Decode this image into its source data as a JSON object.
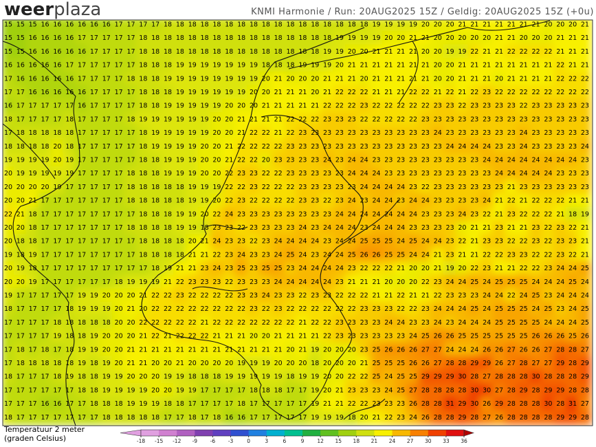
{
  "logo": {
    "bold": "weer",
    "light": "plaza"
  },
  "header": "KNMI Harmonie / Run: 20AUG2025 15Z / Geldig: 20AUG2025 15Z (+0u)",
  "legend": {
    "line1": "Temperatuur 2 meter",
    "line2": "(graden Celsius)",
    "ticks": [
      -18,
      -15,
      -12,
      -9,
      -6,
      -3,
      0,
      3,
      6,
      9,
      12,
      15,
      18,
      21,
      24,
      27,
      30,
      33,
      36
    ],
    "colors": [
      "#e0a0e0",
      "#d080d0",
      "#b060c0",
      "#8040b0",
      "#6040c0",
      "#3050d0",
      "#2080e0",
      "#00b0d0",
      "#00c090",
      "#20b040",
      "#60c020",
      "#a0d010",
      "#d0e010",
      "#f8f000",
      "#f8b800",
      "#f88000",
      "#f04000",
      "#e01010",
      "#b00000"
    ]
  },
  "grid": [
    [
      15,
      15,
      15,
      16,
      16,
      16,
      16,
      16,
      16,
      17,
      17,
      17,
      17,
      18,
      18,
      18,
      18,
      18,
      18,
      18,
      18,
      18,
      18,
      18,
      18,
      18,
      18,
      18,
      18,
      18,
      19,
      19,
      19,
      19,
      20,
      20,
      20,
      21,
      21,
      21,
      21,
      21,
      21,
      21,
      20,
      20,
      20,
      21
    ],
    [
      15,
      15,
      16,
      16,
      16,
      16,
      17,
      17,
      17,
      17,
      17,
      18,
      18,
      18,
      18,
      18,
      18,
      18,
      18,
      18,
      18,
      18,
      18,
      18,
      18,
      18,
      18,
      19,
      19,
      19,
      19,
      20,
      20,
      21,
      21,
      20,
      20,
      20,
      20,
      20,
      21,
      21,
      20,
      20,
      20,
      21,
      21,
      21
    ],
    [
      15,
      15,
      16,
      16,
      16,
      16,
      16,
      17,
      17,
      17,
      17,
      18,
      18,
      18,
      18,
      18,
      18,
      18,
      18,
      18,
      18,
      18,
      18,
      18,
      18,
      18,
      19,
      19,
      20,
      20,
      21,
      21,
      21,
      21,
      20,
      20,
      19,
      19,
      22,
      21,
      21,
      22,
      22,
      22,
      22,
      21,
      21,
      21
    ],
    [
      16,
      16,
      16,
      16,
      16,
      17,
      17,
      17,
      17,
      17,
      17,
      18,
      18,
      18,
      19,
      19,
      19,
      19,
      19,
      19,
      19,
      18,
      18,
      18,
      19,
      19,
      19,
      20,
      21,
      21,
      21,
      21,
      21,
      21,
      21,
      20,
      20,
      21,
      21,
      21,
      21,
      21,
      21,
      21,
      21,
      22,
      21,
      21
    ],
    [
      17,
      16,
      16,
      16,
      16,
      16,
      17,
      17,
      17,
      17,
      18,
      18,
      18,
      19,
      19,
      19,
      19,
      19,
      19,
      19,
      19,
      20,
      21,
      20,
      20,
      20,
      21,
      21,
      21,
      20,
      21,
      21,
      21,
      21,
      21,
      20,
      20,
      21,
      21,
      21,
      20,
      21,
      21,
      21,
      21,
      22,
      22,
      22
    ],
    [
      17,
      17,
      16,
      16,
      16,
      16,
      16,
      17,
      17,
      17,
      17,
      18,
      18,
      18,
      19,
      19,
      19,
      19,
      19,
      19,
      20,
      20,
      21,
      21,
      21,
      20,
      21,
      22,
      22,
      22,
      21,
      21,
      21,
      22,
      22,
      21,
      22,
      21,
      22,
      23,
      22,
      22,
      22,
      22,
      22,
      22,
      22,
      22
    ],
    [
      16,
      17,
      17,
      17,
      17,
      17,
      16,
      17,
      17,
      17,
      17,
      18,
      18,
      19,
      19,
      19,
      19,
      19,
      20,
      20,
      20,
      21,
      21,
      21,
      21,
      21,
      22,
      22,
      22,
      23,
      22,
      22,
      22,
      22,
      22,
      23,
      23,
      22,
      23,
      23,
      23,
      23,
      22,
      23,
      23,
      23,
      23,
      23
    ],
    [
      18,
      17,
      17,
      17,
      17,
      18,
      17,
      17,
      17,
      17,
      18,
      19,
      19,
      19,
      19,
      19,
      19,
      20,
      20,
      21,
      21,
      21,
      21,
      22,
      22,
      22,
      23,
      23,
      23,
      22,
      22,
      22,
      22,
      22,
      23,
      23,
      23,
      23,
      23,
      23,
      23,
      23,
      23,
      23,
      23,
      23,
      23,
      23
    ],
    [
      17,
      18,
      18,
      18,
      18,
      18,
      17,
      17,
      17,
      17,
      17,
      18,
      19,
      19,
      19,
      19,
      19,
      20,
      20,
      21,
      22,
      22,
      21,
      22,
      23,
      23,
      23,
      23,
      23,
      23,
      23,
      23,
      23,
      23,
      23,
      24,
      23,
      23,
      23,
      23,
      23,
      23,
      24,
      23,
      23,
      23,
      23,
      23
    ],
    [
      18,
      18,
      18,
      18,
      20,
      18,
      17,
      17,
      17,
      17,
      17,
      18,
      19,
      19,
      19,
      19,
      20,
      20,
      21,
      22,
      22,
      22,
      22,
      23,
      23,
      23,
      23,
      23,
      23,
      23,
      23,
      23,
      23,
      23,
      23,
      23,
      24,
      24,
      24,
      24,
      23,
      23,
      24,
      23,
      23,
      23,
      23,
      24
    ],
    [
      19,
      19,
      19,
      19,
      20,
      19,
      17,
      17,
      17,
      17,
      17,
      18,
      18,
      19,
      19,
      19,
      20,
      20,
      21,
      22,
      22,
      20,
      23,
      23,
      23,
      23,
      24,
      23,
      24,
      24,
      23,
      23,
      23,
      23,
      23,
      23,
      23,
      23,
      23,
      24,
      24,
      24,
      24,
      24,
      24,
      24,
      24,
      23
    ],
    [
      20,
      19,
      19,
      19,
      19,
      19,
      17,
      17,
      17,
      17,
      18,
      18,
      18,
      19,
      19,
      19,
      20,
      20,
      22,
      23,
      23,
      22,
      22,
      23,
      23,
      23,
      23,
      23,
      24,
      24,
      24,
      23,
      23,
      23,
      23,
      23,
      23,
      23,
      23,
      23,
      24,
      24,
      24,
      24,
      24,
      23,
      23,
      23
    ],
    [
      20,
      20,
      20,
      20,
      19,
      17,
      17,
      17,
      17,
      17,
      18,
      18,
      18,
      18,
      18,
      19,
      19,
      19,
      22,
      22,
      23,
      22,
      22,
      22,
      23,
      23,
      23,
      23,
      23,
      24,
      24,
      24,
      24,
      23,
      22,
      23,
      23,
      23,
      23,
      23,
      23,
      21,
      23,
      23,
      23,
      23,
      23,
      23
    ],
    [
      20,
      20,
      21,
      17,
      17,
      17,
      17,
      17,
      17,
      17,
      18,
      18,
      18,
      18,
      18,
      19,
      19,
      20,
      22,
      23,
      22,
      22,
      22,
      22,
      23,
      23,
      22,
      23,
      24,
      23,
      24,
      24,
      23,
      24,
      24,
      23,
      23,
      23,
      23,
      24,
      21,
      22,
      21,
      22,
      22,
      22,
      21,
      21
    ],
    [
      22,
      21,
      18,
      17,
      17,
      17,
      17,
      17,
      17,
      17,
      17,
      18,
      18,
      18,
      19,
      19,
      20,
      22,
      24,
      23,
      23,
      23,
      23,
      23,
      23,
      23,
      23,
      24,
      24,
      24,
      24,
      24,
      24,
      24,
      23,
      23,
      23,
      24,
      23,
      22,
      21,
      23,
      22,
      22,
      22,
      21,
      18,
      19
    ],
    [
      20,
      20,
      18,
      17,
      17,
      17,
      17,
      17,
      17,
      17,
      18,
      18,
      18,
      18,
      19,
      19,
      18,
      23,
      23,
      22,
      23,
      23,
      23,
      23,
      24,
      23,
      24,
      24,
      24,
      23,
      24,
      24,
      24,
      23,
      23,
      23,
      23,
      20,
      21,
      21,
      23,
      21,
      21,
      23,
      22,
      23,
      22,
      21
    ],
    [
      20,
      18,
      18,
      17,
      17,
      17,
      17,
      17,
      17,
      17,
      17,
      18,
      18,
      18,
      18,
      20,
      21,
      24,
      23,
      23,
      22,
      23,
      24,
      24,
      24,
      24,
      23,
      24,
      24,
      25,
      25,
      25,
      24,
      25,
      24,
      24,
      23,
      22,
      21,
      23,
      23,
      22,
      22,
      23,
      22,
      23,
      23,
      21
    ],
    [
      19,
      18,
      19,
      17,
      17,
      17,
      17,
      17,
      17,
      17,
      17,
      18,
      18,
      18,
      18,
      21,
      21,
      22,
      23,
      24,
      23,
      23,
      24,
      25,
      24,
      23,
      24,
      24,
      25,
      26,
      26,
      25,
      25,
      24,
      24,
      21,
      23,
      21,
      21,
      22,
      22,
      23,
      23,
      22,
      22,
      23,
      22,
      21
    ],
    [
      20,
      19,
      18,
      17,
      17,
      17,
      17,
      17,
      17,
      17,
      17,
      17,
      18,
      19,
      21,
      21,
      23,
      24,
      23,
      25,
      23,
      25,
      25,
      23,
      24,
      24,
      24,
      24,
      23,
      22,
      22,
      22,
      21,
      20,
      20,
      21,
      19,
      20,
      22,
      23,
      21,
      21,
      22,
      22,
      23,
      24,
      24,
      25
    ],
    [
      20,
      20,
      19,
      17,
      17,
      17,
      17,
      17,
      17,
      18,
      19,
      19,
      19,
      21,
      22,
      23,
      23,
      23,
      22,
      23,
      23,
      23,
      24,
      24,
      24,
      24,
      24,
      23,
      21,
      21,
      21,
      20,
      20,
      20,
      22,
      23,
      24,
      24,
      25,
      24,
      25,
      25,
      25,
      24,
      24,
      24,
      25,
      24
    ],
    [
      19,
      17,
      17,
      17,
      17,
      17,
      19,
      19,
      20,
      20,
      20,
      21,
      22,
      22,
      23,
      22,
      22,
      22,
      22,
      23,
      23,
      24,
      23,
      23,
      22,
      23,
      23,
      22,
      22,
      22,
      21,
      21,
      22,
      21,
      21,
      22,
      23,
      23,
      23,
      24,
      24,
      22,
      24,
      25,
      23,
      24,
      24,
      24
    ],
    [
      18,
      17,
      17,
      17,
      17,
      18,
      19,
      19,
      19,
      20,
      21,
      20,
      22,
      22,
      22,
      22,
      22,
      22,
      22,
      22,
      23,
      22,
      23,
      22,
      22,
      22,
      22,
      22,
      22,
      23,
      23,
      23,
      22,
      22,
      23,
      24,
      24,
      24,
      25,
      24,
      25,
      25,
      25,
      24,
      25,
      23,
      24,
      25
    ],
    [
      17,
      17,
      17,
      17,
      18,
      18,
      18,
      18,
      18,
      20,
      20,
      22,
      22,
      22,
      22,
      22,
      21,
      22,
      22,
      22,
      22,
      22,
      22,
      22,
      21,
      22,
      22,
      23,
      23,
      23,
      23,
      24,
      24,
      23,
      23,
      24,
      23,
      24,
      24,
      24,
      25,
      25,
      25,
      25,
      24,
      24,
      24,
      25
    ],
    [
      17,
      17,
      17,
      17,
      19,
      18,
      18,
      19,
      20,
      20,
      20,
      21,
      22,
      21,
      22,
      22,
      22,
      21,
      21,
      21,
      20,
      20,
      21,
      21,
      21,
      21,
      22,
      23,
      23,
      23,
      23,
      23,
      23,
      24,
      25,
      26,
      26,
      25,
      25,
      25,
      25,
      25,
      25,
      26,
      26,
      26,
      25,
      26
    ],
    [
      17,
      18,
      17,
      18,
      17,
      18,
      19,
      19,
      20,
      20,
      21,
      21,
      21,
      21,
      21,
      21,
      21,
      21,
      21,
      21,
      21,
      21,
      21,
      20,
      21,
      19,
      20,
      20,
      20,
      23,
      25,
      26,
      26,
      26,
      27,
      27,
      24,
      24,
      24,
      26,
      26,
      27,
      26,
      26,
      27,
      28,
      28,
      27
    ],
    [
      17,
      18,
      18,
      18,
      18,
      18,
      19,
      18,
      19,
      20,
      21,
      21,
      20,
      20,
      21,
      20,
      20,
      20,
      20,
      19,
      19,
      19,
      20,
      20,
      20,
      18,
      20,
      20,
      20,
      21,
      25,
      25,
      25,
      26,
      26,
      27,
      28,
      28,
      29,
      29,
      26,
      27,
      28,
      27,
      27,
      29,
      28,
      29
    ],
    [
      18,
      17,
      17,
      17,
      18,
      19,
      18,
      18,
      19,
      19,
      20,
      20,
      20,
      19,
      19,
      18,
      18,
      18,
      19,
      19,
      19,
      19,
      19,
      18,
      19,
      19,
      20,
      20,
      22,
      22,
      25,
      24,
      25,
      25,
      29,
      29,
      29,
      30,
      28,
      27,
      28,
      28,
      28,
      30,
      28,
      28,
      28,
      29
    ],
    [
      17,
      17,
      17,
      17,
      17,
      17,
      18,
      18,
      19,
      19,
      19,
      19,
      20,
      20,
      19,
      19,
      17,
      17,
      17,
      17,
      18,
      18,
      18,
      17,
      17,
      19,
      20,
      21,
      23,
      23,
      23,
      24,
      25,
      27,
      28,
      28,
      28,
      28,
      30,
      30,
      27,
      28,
      29,
      28,
      29,
      29,
      28,
      28
    ],
    [
      17,
      17,
      17,
      16,
      16,
      17,
      17,
      18,
      18,
      18,
      19,
      19,
      19,
      18,
      18,
      17,
      17,
      17,
      17,
      18,
      17,
      17,
      17,
      17,
      17,
      19,
      21,
      21,
      22,
      22,
      23,
      23,
      23,
      26,
      28,
      28,
      31,
      29,
      30,
      26,
      29,
      28,
      28,
      28,
      30,
      28,
      31,
      27
    ],
    [
      18,
      17,
      17,
      17,
      17,
      17,
      17,
      17,
      18,
      18,
      18,
      18,
      18,
      17,
      17,
      18,
      17,
      18,
      16,
      16,
      17,
      17,
      17,
      17,
      17,
      19,
      19,
      19,
      18,
      20,
      21,
      22,
      23,
      24,
      26,
      28,
      28,
      29,
      28,
      27,
      26,
      28,
      28,
      28,
      28,
      29,
      29,
      28
    ]
  ]
}
